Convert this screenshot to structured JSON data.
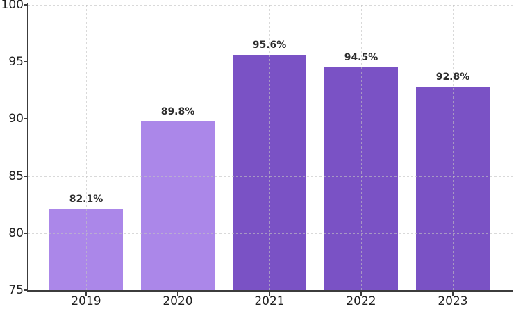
{
  "chart_data": {
    "type": "bar",
    "categories": [
      "2019",
      "2020",
      "2021",
      "2022",
      "2023"
    ],
    "values": [
      82.1,
      89.8,
      95.6,
      94.5,
      92.8
    ],
    "value_labels": [
      "82.1%",
      "89.8%",
      "95.6%",
      "94.5%",
      "92.8%"
    ],
    "title": "",
    "xlabel": "",
    "ylabel": "",
    "ylim": [
      75,
      100
    ],
    "yticks": [
      75,
      80,
      85,
      90,
      95,
      100
    ],
    "ytick_labels": [
      "75",
      "80",
      "85",
      "90",
      "95",
      "100"
    ],
    "grid": "dashed-both-axes-over-bars",
    "legend": "none",
    "bar_colors": [
      "#ab87e9",
      "#ab87e9",
      "#7a52c5",
      "#7a52c5",
      "#7a52c5"
    ],
    "colors": {
      "bar_light_purple": "#ab87e9",
      "bar_dark_purple": "#7a52c5",
      "grid": "#c2c2c2",
      "axis": "#3c3c3c",
      "tick_label": "#1f1f1f",
      "value_label": "#2e2e2e",
      "background": "#ffffff"
    }
  }
}
